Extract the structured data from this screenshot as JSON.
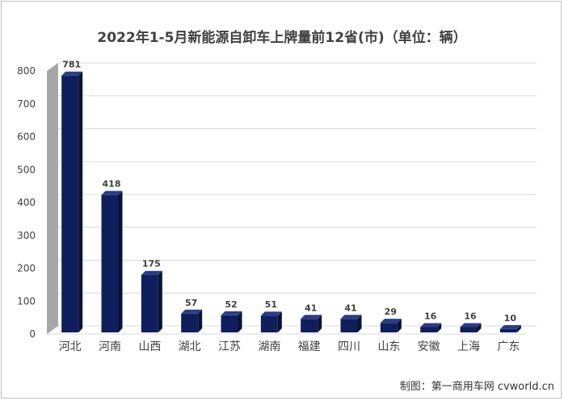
{
  "chart_data": {
    "type": "bar",
    "title": "2022年1-5月新能源自卸车上牌量前12省(市)（单位：辆）",
    "categories": [
      "河北",
      "河南",
      "山西",
      "湖北",
      "江苏",
      "湖南",
      "福建",
      "四川",
      "山东",
      "安徽",
      "上海",
      "广东"
    ],
    "values": [
      781,
      418,
      175,
      57,
      52,
      51,
      41,
      41,
      29,
      16,
      16,
      10
    ],
    "data_labels": [
      "781",
      "418",
      "175",
      "57",
      "52",
      "51",
      "41",
      "41",
      "29",
      "16",
      "16",
      "10"
    ],
    "y_ticks": [
      "0",
      "100",
      "200",
      "300",
      "400",
      "500",
      "600",
      "700",
      "800"
    ],
    "ylim": [
      0,
      800
    ],
    "grid": true,
    "legend": "none",
    "style": "3d-column"
  },
  "colors": {
    "bar_front": "#0f1f5c",
    "bar_side": "#081338",
    "bar_top": "#2a3c86",
    "wall": "#a6a6a6",
    "grid": "#d9d9d9"
  },
  "footer": {
    "credit": "制图：第一商用车网 cvworld.cn"
  }
}
